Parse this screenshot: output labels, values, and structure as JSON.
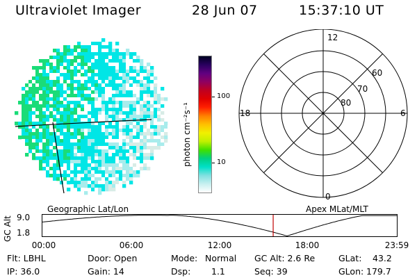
{
  "header": {
    "title": "Ultraviolet Imager",
    "date": "28 Jun 07",
    "time": "15:37:10 UT"
  },
  "image_panel": {
    "colors": {
      "cyan": "#00e6e6",
      "green": "#1adc78",
      "light": "#a8ecec",
      "pale": "#d8ece6"
    }
  },
  "colorbar": {
    "unit_label": "photon cm⁻²s⁻¹",
    "ticks": [
      {
        "label": "100",
        "level": 0.3
      },
      {
        "label": "10",
        "level": 0.78
      }
    ],
    "scale": "log",
    "colors": [
      "#ffffff",
      "#c8f0f0",
      "#80e0e0",
      "#00e0c8",
      "#00d080",
      "#40e000",
      "#c0f000",
      "#f0f000",
      "#ffc000",
      "#ff8000",
      "#ff2000",
      "#e00000",
      "#c00020",
      "#900060",
      "#600080",
      "#2a0060",
      "#000020"
    ]
  },
  "polar": {
    "mlt_labels": {
      "top": "12",
      "left": "18",
      "right": "6",
      "bottom": "0"
    },
    "lat_labels": [
      "60",
      "70",
      "80"
    ]
  },
  "timeline": {
    "ylabel": "GC Alt",
    "yticks": [
      "9.0",
      "1.8"
    ],
    "left_label": "Geographic Lat/Lon",
    "right_label": "Apex MLat/MLT",
    "xticks": [
      "00:00",
      "06:00",
      "12:00",
      "18:00",
      "23:59"
    ],
    "current_time_fraction": 0.6508
  },
  "info": {
    "filter": "Flt: LBHL",
    "ip": "IP: 36.0",
    "door": "Door: Open",
    "gain": "Gain: 14",
    "mode_label": "Mode:",
    "mode_value": "Normal",
    "dsp_label": "Dsp:",
    "dsp_value": "1.1",
    "gc_alt": "GC Alt: 2.6 Re",
    "seq": "Seq: 39",
    "glat_label": "GLat:",
    "glat_value": "43.2",
    "glon_label": "GLon:",
    "glon_value": "179.7"
  }
}
